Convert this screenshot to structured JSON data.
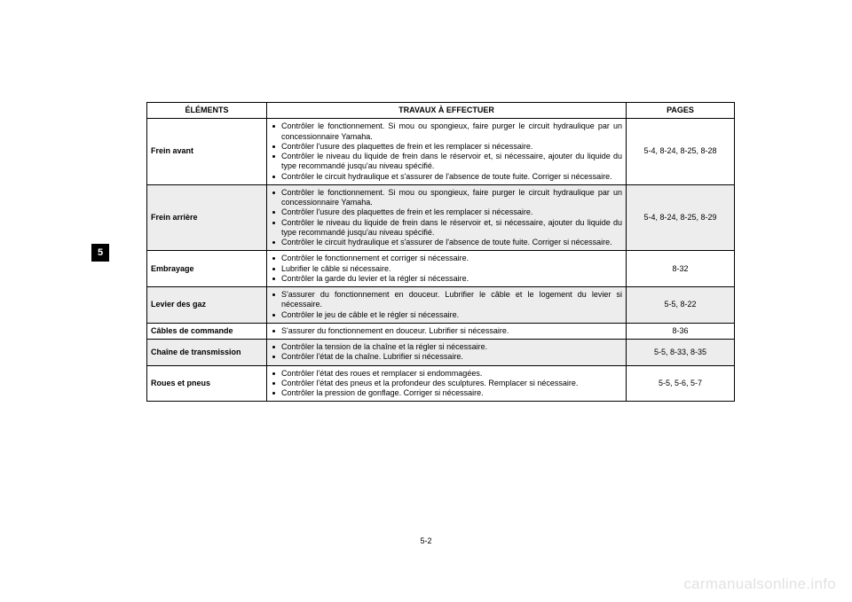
{
  "sideTab": "5",
  "pageNumber": "5-2",
  "watermark": "carmanualsonline.info",
  "table": {
    "headers": {
      "elements": "ÉLÉMENTS",
      "works": "TRAVAUX À EFFECTUER",
      "pages": "PAGES"
    },
    "rows": [
      {
        "element": "Frein avant",
        "works": [
          "Contrôler le fonctionnement. Si mou ou spongieux, faire purger le circuit hydraulique par un concessionnaire Yamaha.",
          "Contrôler l'usure des plaquettes de frein et les remplacer si nécessaire.",
          "Contrôler le niveau du liquide de frein dans le réservoir et, si nécessaire, ajouter du liquide du type recommandé jusqu'au niveau spécifié.",
          "Contrôler le circuit hydraulique et s'assurer de l'absence de toute fuite. Corriger si nécessaire."
        ],
        "pages": "5-4, 8-24, 8-25, 8-28",
        "shaded": false
      },
      {
        "element": "Frein arrière",
        "works": [
          "Contrôler le fonctionnement. Si mou ou spongieux, faire purger le circuit hydraulique par un concessionnaire Yamaha.",
          "Contrôler l'usure des plaquettes de frein et les remplacer si nécessaire.",
          "Contrôler le niveau du liquide de frein dans le réservoir et, si nécessaire, ajouter du liquide du type recommandé jusqu'au niveau spécifié.",
          "Contrôler le circuit hydraulique et s'assurer de l'absence de toute fuite. Corriger si nécessaire."
        ],
        "pages": "5-4, 8-24, 8-25, 8-29",
        "shaded": true
      },
      {
        "element": "Embrayage",
        "works": [
          "Contrôler le fonctionnement et corriger si nécessaire.",
          "Lubrifier le câble si nécessaire.",
          "Contrôler la garde du levier et la régler si nécessaire."
        ],
        "pages": "8-32",
        "shaded": false
      },
      {
        "element": "Levier des gaz",
        "works": [
          "S'assurer du fonctionnement en douceur. Lubrifier le câble et le logement du levier si nécessaire.",
          "Contrôler le jeu de câble et le régler si nécessaire."
        ],
        "pages": "5-5, 8-22",
        "shaded": true
      },
      {
        "element": "Câbles de commande",
        "works": [
          "S'assurer du fonctionnement en douceur. Lubrifier si nécessaire."
        ],
        "pages": "8-36",
        "shaded": false
      },
      {
        "element": "Chaîne de transmission",
        "works": [
          "Contrôler la tension de la chaîne et la régler si nécessaire.",
          "Contrôler l'état de la chaîne. Lubrifier si nécessaire."
        ],
        "pages": "5-5, 8-33, 8-35",
        "shaded": true
      },
      {
        "element": "Roues et pneus",
        "works": [
          "Contrôler l'état des roues et remplacer si endommagées.",
          "Contrôler l'état des pneus et la profondeur des sculptures. Remplacer si nécessaire.",
          "Contrôler la pression de gonflage. Corriger si nécessaire."
        ],
        "pages": "5-5, 5-6, 5-7",
        "shaded": false
      }
    ]
  }
}
